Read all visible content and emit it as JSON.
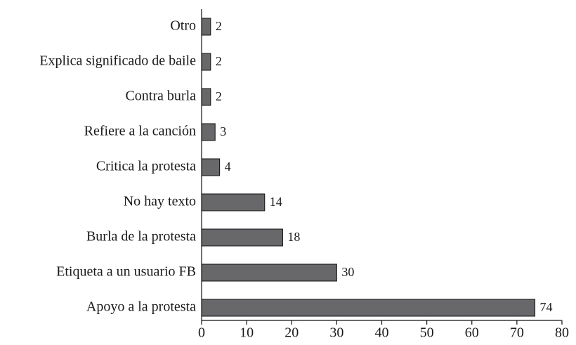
{
  "chart_data": {
    "type": "bar",
    "orientation": "horizontal",
    "categories": [
      "Otro",
      "Explica significado de baile",
      "Contra burla",
      "Refiere a la canción",
      "Critica la protesta",
      "No hay texto",
      "Burla de la protesta",
      "Etiqueta a un usuario FB",
      "Apoyo a la protesta"
    ],
    "values": [
      2,
      2,
      2,
      3,
      4,
      14,
      18,
      30,
      74
    ],
    "color": "#68686b",
    "xlim": [
      0,
      80
    ],
    "xticks": [
      0,
      10,
      20,
      30,
      40,
      50,
      60,
      70,
      80
    ],
    "grid": false
  }
}
